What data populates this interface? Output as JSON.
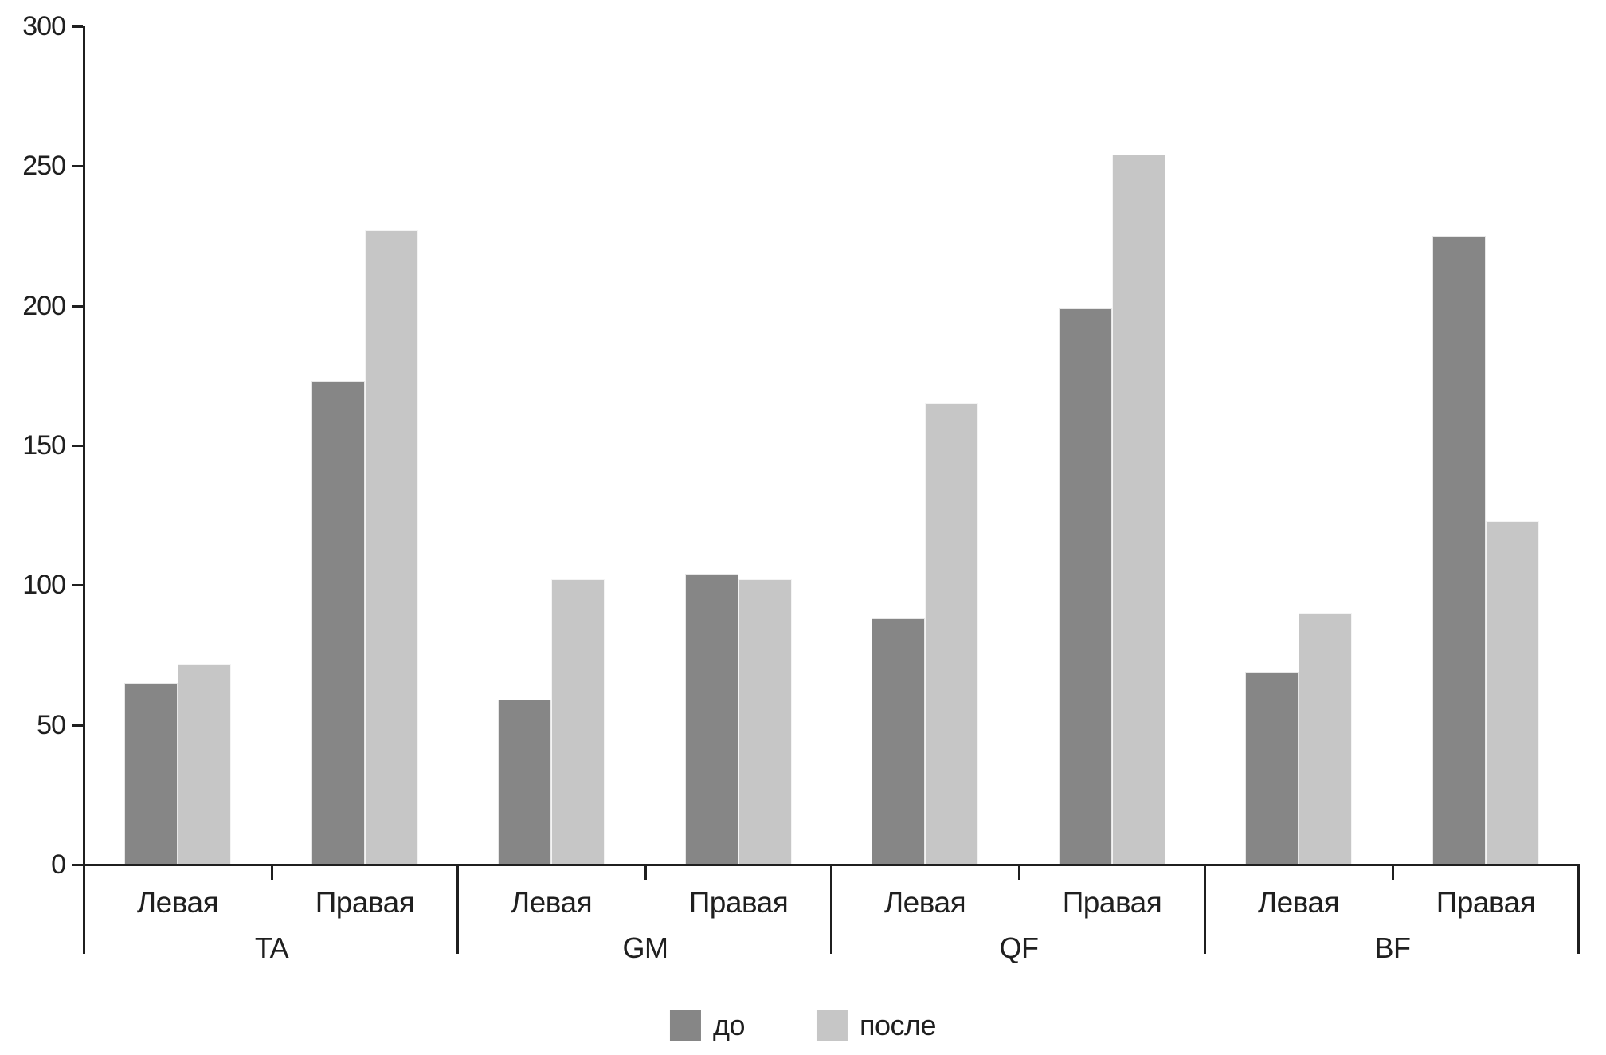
{
  "chart_data": {
    "type": "bar",
    "title": "",
    "groups": [
      "TA",
      "GM",
      "QF",
      "BF"
    ],
    "subcategories": [
      "Левая",
      "Правая"
    ],
    "series": [
      {
        "name": "до",
        "color": "#868686",
        "values": [
          [
            65,
            173
          ],
          [
            59,
            104
          ],
          [
            88,
            199
          ],
          [
            69,
            225
          ]
        ]
      },
      {
        "name": "после",
        "color": "#c6c6c6",
        "values": [
          [
            72,
            227
          ],
          [
            102,
            102
          ],
          [
            165,
            254
          ],
          [
            90,
            123
          ]
        ]
      }
    ],
    "ylim": [
      0,
      300
    ],
    "yticks": [
      0,
      50,
      100,
      150,
      200,
      250,
      300
    ],
    "grid": false,
    "legend_position": "bottom",
    "axis_color": "#1f1f1f",
    "background_color": "#ffffff"
  }
}
